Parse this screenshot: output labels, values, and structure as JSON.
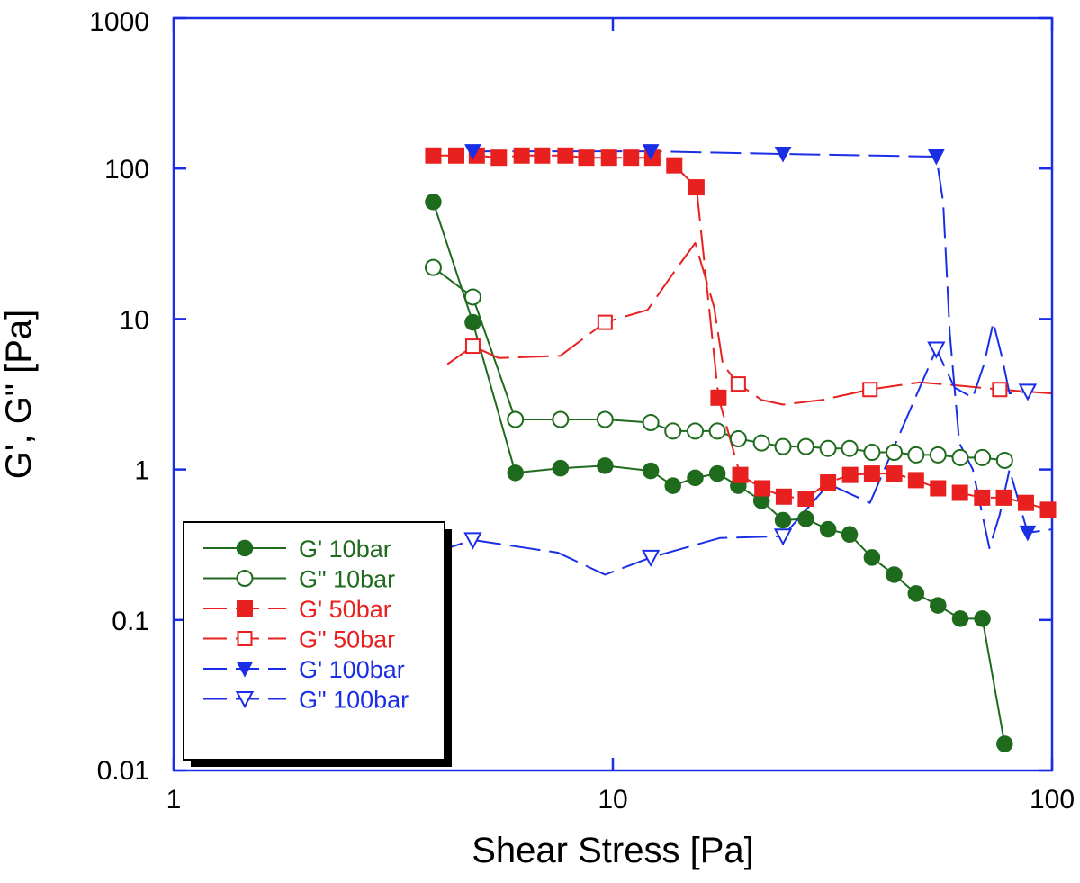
{
  "chart_data": {
    "type": "scatter",
    "title": "",
    "xlabel": "Shear Stress [Pa]",
    "ylabel": "G', G\" [Pa]",
    "xscale": "log",
    "yscale": "log",
    "xlim": [
      1,
      100
    ],
    "ylim": [
      0.01,
      1000
    ],
    "x_tick_labels": [
      "1",
      "10",
      "100"
    ],
    "x_tick_values": [
      1,
      10,
      100
    ],
    "y_tick_labels": [
      "0.01",
      "0.1",
      "1",
      "10",
      "100",
      "1000"
    ],
    "y_tick_values": [
      0.01,
      0.1,
      1,
      10,
      100,
      1000
    ],
    "legend_position": "bottom-left",
    "series": [
      {
        "name": "G' 10bar",
        "color": "#1e6b1e",
        "marker": "circle-filled",
        "line": "solid",
        "x": [
          3.9,
          4.8,
          6.0,
          7.6,
          9.6,
          12.2,
          13.7,
          15.4,
          17.3,
          19.3,
          21.8,
          24.4,
          27.5,
          30.9,
          34.6,
          38.9,
          43.7,
          49.0,
          55.0,
          61.8,
          69.4,
          78.0
        ],
        "y": [
          60,
          9.5,
          0.95,
          1.02,
          1.06,
          0.98,
          0.78,
          0.88,
          0.94,
          0.78,
          0.62,
          0.46,
          0.47,
          0.4,
          0.37,
          0.26,
          0.2,
          0.15,
          0.125,
          0.102,
          0.102,
          0.015
        ]
      },
      {
        "name": "G\" 10bar",
        "color": "#1e6b1e",
        "marker": "circle-open",
        "line": "solid",
        "x": [
          3.9,
          4.8,
          6.0,
          7.6,
          9.6,
          12.2,
          13.7,
          15.4,
          17.3,
          19.3,
          21.8,
          24.4,
          27.5,
          30.9,
          34.6,
          38.9,
          43.7,
          49.0,
          55.0,
          61.8,
          69.4,
          78.0
        ],
        "y": [
          22,
          14,
          2.15,
          2.15,
          2.15,
          2.05,
          1.8,
          1.8,
          1.8,
          1.6,
          1.5,
          1.42,
          1.42,
          1.38,
          1.38,
          1.3,
          1.3,
          1.25,
          1.25,
          1.2,
          1.2,
          1.15
        ]
      },
      {
        "name": "G' 50bar",
        "color": "#e82020",
        "marker": "square-filled",
        "line": "dashed",
        "x": [
          3.9,
          4.4,
          4.9,
          5.5,
          6.2,
          6.9,
          7.8,
          8.7,
          9.8,
          11.0,
          12.3,
          13.8,
          15.5,
          17.4,
          19.5,
          21.9,
          24.5,
          27.5,
          30.9,
          34.7,
          38.9,
          43.7,
          49.0,
          55.0,
          61.7,
          69.3,
          77.7,
          87.2,
          97.9
        ],
        "y": [
          122,
          122,
          122,
          118,
          122,
          122,
          122,
          118,
          118,
          118,
          118,
          105,
          75,
          3.0,
          0.92,
          0.75,
          0.66,
          0.64,
          0.82,
          0.92,
          0.94,
          0.94,
          0.85,
          0.75,
          0.7,
          0.65,
          0.65,
          0.6,
          0.54
        ]
      },
      {
        "name": "G\" 50bar",
        "color": "#e82020",
        "marker": "square-open",
        "line": "dashed",
        "marker_x": [
          4.8,
          9.6,
          19.3,
          38.5,
          76.0
        ],
        "marker_y": [
          6.6,
          9.5,
          3.7,
          3.4,
          3.4
        ],
        "x": [
          4.2,
          4.8,
          5.5,
          7.6,
          9.6,
          12.0,
          13.7,
          15.4,
          17.0,
          17.8,
          19.3,
          21.8,
          24.4,
          30.0,
          38.5,
          50.0,
          62.0,
          76.0,
          100.0
        ],
        "y": [
          5.0,
          6.6,
          5.5,
          5.7,
          9.5,
          11.5,
          20.0,
          32.0,
          12.0,
          5.0,
          3.7,
          2.9,
          2.7,
          2.9,
          3.4,
          3.8,
          3.6,
          3.4,
          3.2
        ]
      },
      {
        "name": "G' 100bar",
        "color": "#1a2ee6",
        "marker": "triangle-down-filled",
        "line": "dashed",
        "marker_x": [
          4.8,
          12.2,
          24.4,
          54.5,
          88.0
        ],
        "marker_y": [
          130,
          130,
          125,
          120,
          0.38
        ],
        "x": [
          4.8,
          12.2,
          24.4,
          54.5,
          56.5,
          58.5,
          61.5,
          66.0,
          72.0,
          76.0,
          80.0,
          88.0,
          100.0
        ],
        "y": [
          130,
          130,
          125,
          120,
          60,
          8.0,
          1.5,
          1.0,
          0.3,
          0.5,
          1.0,
          0.38,
          0.4
        ]
      },
      {
        "name": "G\" 100bar",
        "color": "#1a2ee6",
        "marker": "triangle-down-open",
        "line": "dashed",
        "marker_x": [
          4.8,
          12.2,
          24.4,
          54.5,
          88.0
        ],
        "marker_y": [
          0.34,
          0.26,
          0.36,
          6.3,
          3.3
        ],
        "x": [
          3.9,
          4.8,
          7.5,
          9.6,
          12.2,
          17.5,
          24.4,
          31.0,
          38.5,
          46.0,
          54.5,
          60.0,
          66.0,
          70.0,
          73.5,
          77.0,
          80.0,
          88.0
        ],
        "y": [
          0.28,
          0.34,
          0.28,
          0.2,
          0.26,
          0.35,
          0.36,
          0.8,
          0.6,
          2.0,
          6.3,
          3.5,
          3.0,
          5.0,
          9.5,
          5.5,
          3.2,
          3.3
        ]
      }
    ]
  }
}
